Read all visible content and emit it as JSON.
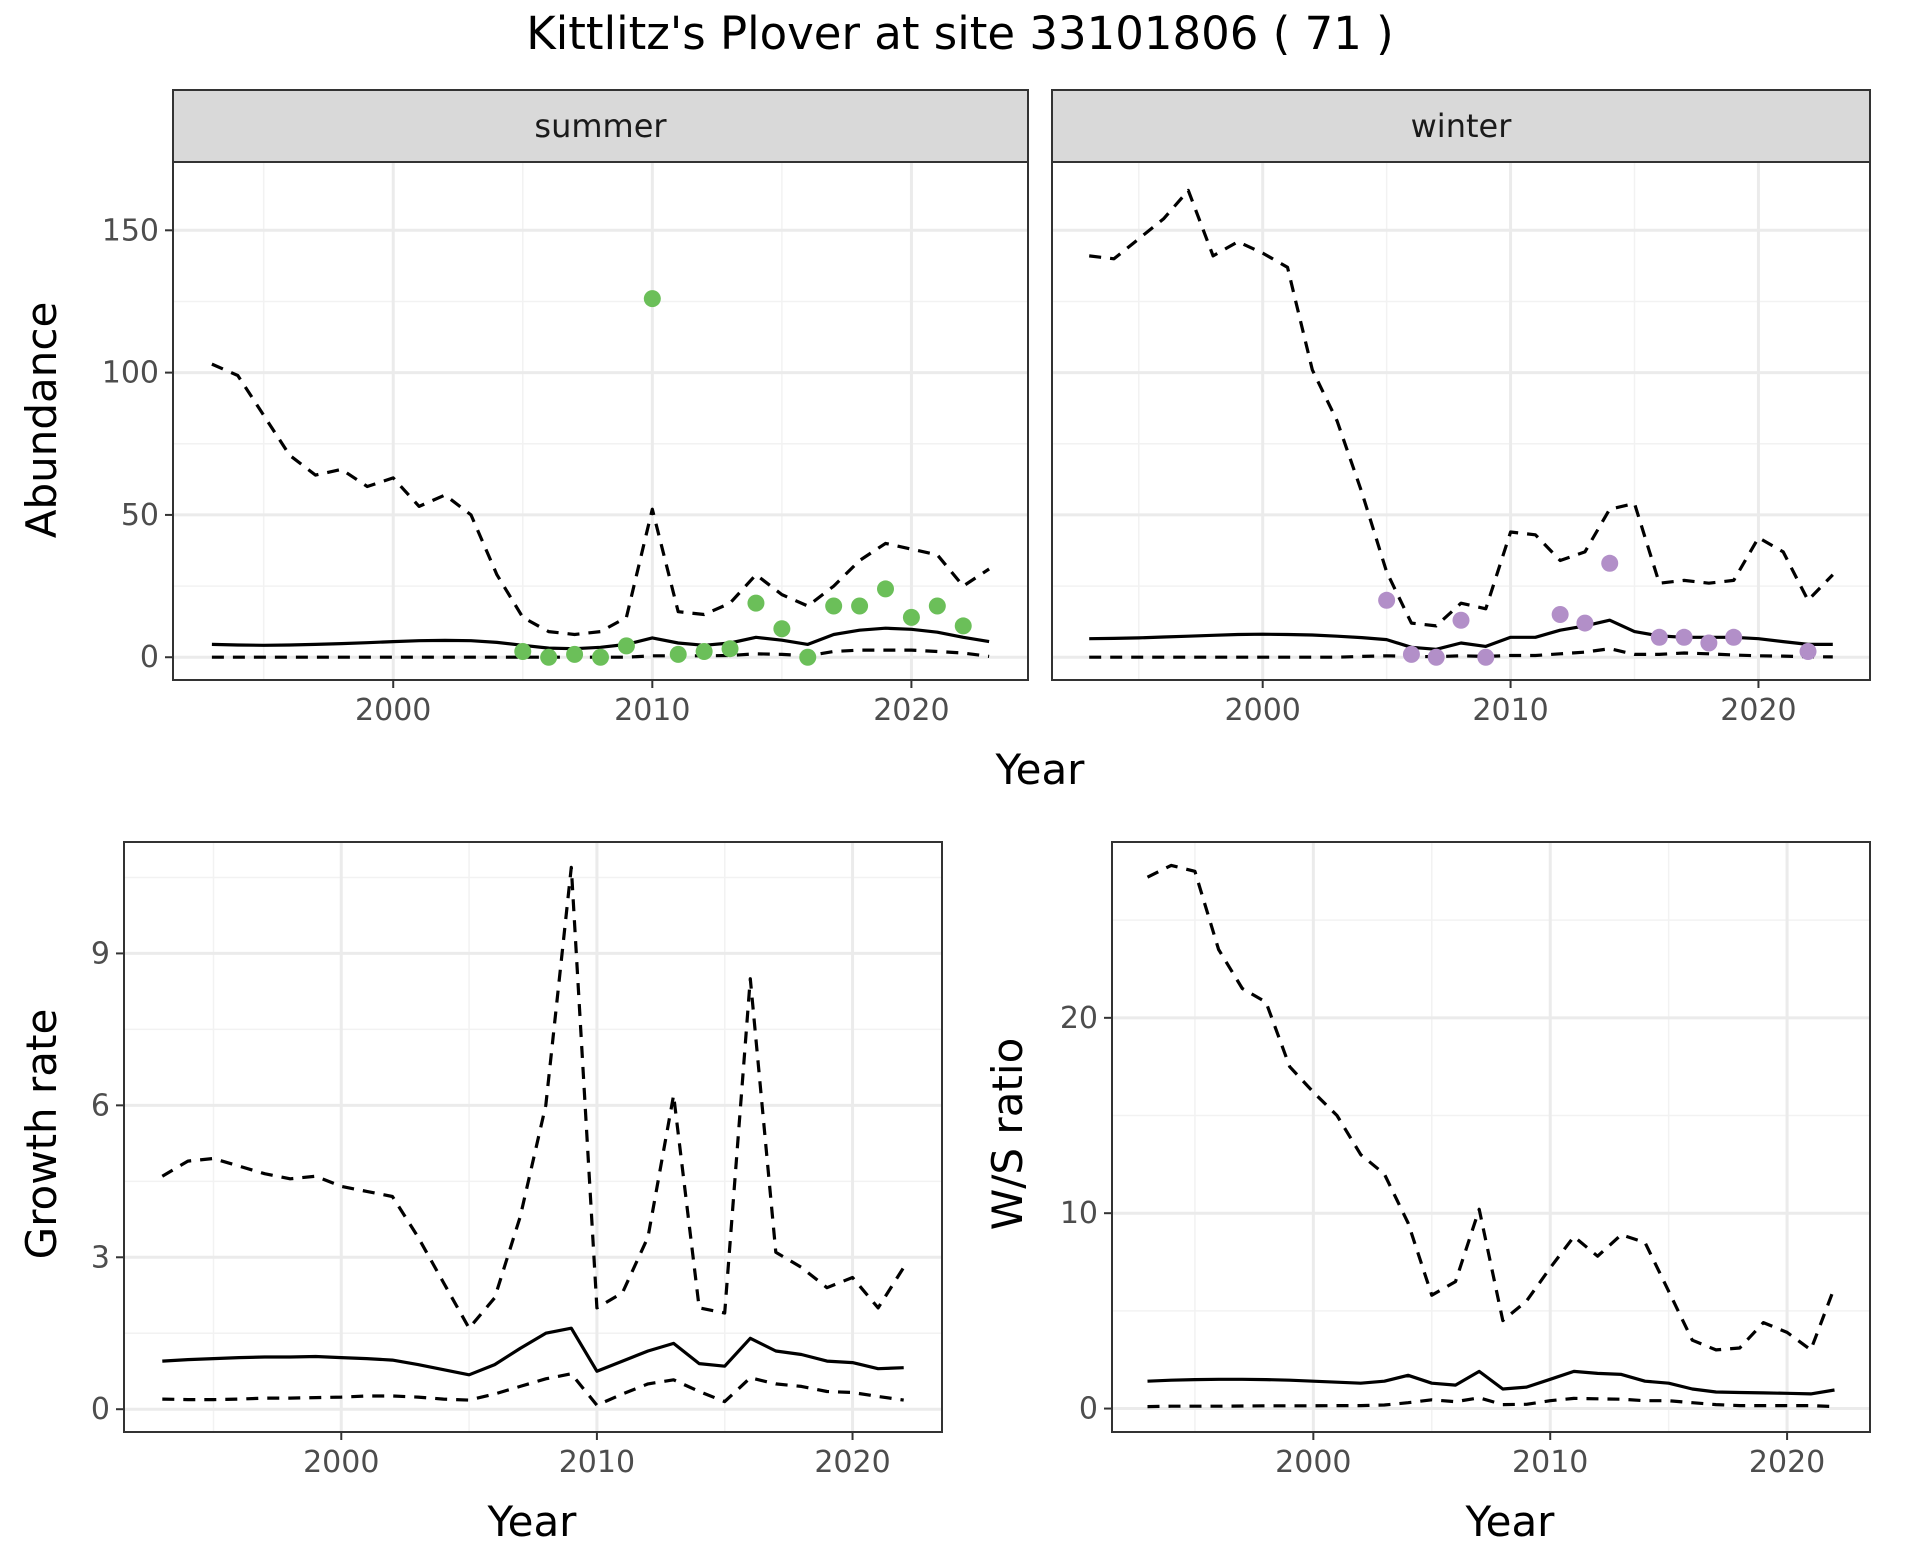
{
  "title": "Kittlitz's Plover at site 33101806 ( 71 )",
  "chart_data": [
    {
      "id": "abundance",
      "type": "line",
      "facets": [
        "summer",
        "winter"
      ],
      "xlabel": "Year",
      "ylabel": "Abundance",
      "xlim": [
        1991.5,
        2024.5
      ],
      "ylim": [
        -8,
        174
      ],
      "xticks": [
        2000,
        2010,
        2020
      ],
      "yticks": [
        0,
        50,
        100,
        150
      ],
      "grid": true,
      "panels": [
        {
          "strip": "summer",
          "point_color": "#6bbf59",
          "x": [
            1993,
            1994,
            1995,
            1996,
            1997,
            1998,
            1999,
            2000,
            2001,
            2002,
            2003,
            2004,
            2005,
            2006,
            2007,
            2008,
            2009,
            2010,
            2011,
            2012,
            2013,
            2014,
            2015,
            2016,
            2017,
            2018,
            2019,
            2020,
            2021,
            2022,
            2023
          ],
          "mean": [
            4.5,
            4.3,
            4.2,
            4.3,
            4.5,
            4.8,
            5.1,
            5.5,
            5.8,
            5.9,
            5.8,
            5.2,
            4.2,
            3.2,
            3.0,
            3.5,
            4.5,
            6.8,
            5.0,
            4.2,
            5.0,
            7.0,
            6.0,
            4.5,
            8.0,
            9.5,
            10.2,
            9.8,
            8.8,
            7.0,
            5.5
          ],
          "upper": [
            103,
            99,
            85,
            71,
            64,
            66,
            60,
            63,
            53,
            57,
            50,
            29,
            14,
            9,
            8,
            9,
            14,
            52,
            16,
            15,
            19,
            29,
            22,
            18,
            25,
            34,
            40,
            38,
            36,
            25,
            31
          ],
          "lower": [
            0,
            0,
            0,
            0,
            0,
            0,
            0,
            0,
            0,
            0,
            0,
            0,
            0,
            0,
            0,
            0,
            0,
            0.5,
            0.5,
            0.5,
            0.6,
            1.2,
            1.0,
            0.5,
            2.0,
            2.5,
            2.5,
            2.5,
            2.0,
            1.5,
            0.3
          ],
          "points": [
            {
              "x": 2005,
              "y": 2
            },
            {
              "x": 2006,
              "y": 0
            },
            {
              "x": 2007,
              "y": 1
            },
            {
              "x": 2008,
              "y": 0
            },
            {
              "x": 2009,
              "y": 4
            },
            {
              "x": 2010,
              "y": 126
            },
            {
              "x": 2011,
              "y": 1
            },
            {
              "x": 2012,
              "y": 2
            },
            {
              "x": 2013,
              "y": 3
            },
            {
              "x": 2014,
              "y": 19
            },
            {
              "x": 2015,
              "y": 10
            },
            {
              "x": 2016,
              "y": 0
            },
            {
              "x": 2017,
              "y": 18
            },
            {
              "x": 2018,
              "y": 18
            },
            {
              "x": 2019,
              "y": 24
            },
            {
              "x": 2020,
              "y": 14
            },
            {
              "x": 2021,
              "y": 18
            },
            {
              "x": 2022,
              "y": 11
            }
          ]
        },
        {
          "strip": "winter",
          "point_color": "#b28fc8",
          "x": [
            1993,
            1994,
            1995,
            1996,
            1997,
            1998,
            1999,
            2000,
            2001,
            2002,
            2003,
            2004,
            2005,
            2006,
            2007,
            2008,
            2009,
            2010,
            2011,
            2012,
            2013,
            2014,
            2015,
            2016,
            2017,
            2018,
            2019,
            2020,
            2021,
            2022,
            2023
          ],
          "mean": [
            6.5,
            6.6,
            6.8,
            7.1,
            7.4,
            7.7,
            8.0,
            8.1,
            8.0,
            7.8,
            7.4,
            6.9,
            6.2,
            3.5,
            2.8,
            5.0,
            3.8,
            7.0,
            7.0,
            9.5,
            11.0,
            13.0,
            9.0,
            7.5,
            7.0,
            7.0,
            7.0,
            6.5,
            5.5,
            4.5,
            4.5
          ],
          "upper": [
            141,
            140,
            147,
            154,
            164,
            141,
            146,
            142,
            137,
            101,
            83,
            58,
            30,
            12,
            11,
            19,
            17,
            44,
            43,
            34,
            37,
            52,
            54,
            26,
            27,
            26,
            27,
            42,
            37,
            20,
            29
          ],
          "lower": [
            0,
            0,
            0,
            0,
            0,
            0,
            0,
            0,
            0,
            0,
            0,
            0.3,
            0.5,
            0.3,
            0.2,
            0.5,
            0.3,
            0.6,
            0.6,
            1.2,
            1.8,
            3.0,
            1.0,
            1.0,
            1.5,
            1.2,
            0.8,
            0.5,
            0.4,
            0.2,
            0.1
          ],
          "points": [
            {
              "x": 2005,
              "y": 20
            },
            {
              "x": 2006,
              "y": 1
            },
            {
              "x": 2007,
              "y": 0
            },
            {
              "x": 2008,
              "y": 13
            },
            {
              "x": 2009,
              "y": 0
            },
            {
              "x": 2012,
              "y": 15
            },
            {
              "x": 2013,
              "y": 12
            },
            {
              "x": 2014,
              "y": 33
            },
            {
              "x": 2016,
              "y": 7
            },
            {
              "x": 2017,
              "y": 7
            },
            {
              "x": 2018,
              "y": 5
            },
            {
              "x": 2019,
              "y": 7
            },
            {
              "x": 2022,
              "y": 2
            }
          ]
        }
      ]
    },
    {
      "id": "growth",
      "type": "line",
      "xlabel": "Year",
      "ylabel": "Growth rate",
      "xlim": [
        1991.5,
        2023.5
      ],
      "ylim": [
        -0.45,
        11.2
      ],
      "xticks": [
        2000,
        2010,
        2020
      ],
      "yticks": [
        0,
        3,
        6,
        9
      ],
      "grid": true,
      "x": [
        1993,
        1994,
        1995,
        1996,
        1997,
        1998,
        1999,
        2000,
        2001,
        2002,
        2003,
        2004,
        2005,
        2006,
        2007,
        2008,
        2009,
        2010,
        2011,
        2012,
        2013,
        2014,
        2015,
        2016,
        2017,
        2018,
        2019,
        2020,
        2021,
        2022
      ],
      "mean": [
        0.95,
        0.98,
        1.0,
        1.02,
        1.03,
        1.03,
        1.04,
        1.02,
        1.0,
        0.97,
        0.88,
        0.78,
        0.68,
        0.88,
        1.2,
        1.5,
        1.6,
        0.75,
        0.95,
        1.15,
        1.3,
        0.9,
        0.85,
        1.4,
        1.15,
        1.08,
        0.95,
        0.92,
        0.8,
        0.82
      ],
      "upper": [
        4.6,
        4.9,
        4.95,
        4.8,
        4.65,
        4.55,
        4.6,
        4.4,
        4.3,
        4.2,
        3.4,
        2.5,
        1.6,
        2.2,
        3.8,
        6.0,
        10.7,
        2.0,
        2.3,
        3.4,
        6.2,
        2.0,
        1.9,
        8.5,
        3.1,
        2.8,
        2.4,
        2.6,
        2.0,
        2.8
      ],
      "lower": [
        0.2,
        0.19,
        0.19,
        0.2,
        0.22,
        0.22,
        0.23,
        0.24,
        0.26,
        0.26,
        0.24,
        0.2,
        0.18,
        0.3,
        0.45,
        0.6,
        0.7,
        0.08,
        0.3,
        0.5,
        0.58,
        0.35,
        0.15,
        0.62,
        0.5,
        0.45,
        0.35,
        0.33,
        0.25,
        0.18
      ]
    },
    {
      "id": "ws_ratio",
      "type": "line",
      "xlabel": "Year",
      "ylabel": "W/S ratio",
      "xlim": [
        1991.5,
        2023.5
      ],
      "ylim": [
        -1.2,
        29.0
      ],
      "xticks": [
        2000,
        2010,
        2020
      ],
      "yticks": [
        0,
        10,
        20
      ],
      "grid": true,
      "x": [
        1993,
        1994,
        1995,
        1996,
        1997,
        1998,
        1999,
        2000,
        2001,
        2002,
        2003,
        2004,
        2005,
        2006,
        2007,
        2008,
        2009,
        2010,
        2011,
        2012,
        2013,
        2014,
        2015,
        2016,
        2017,
        2018,
        2019,
        2020,
        2021,
        2022
      ],
      "mean": [
        1.4,
        1.45,
        1.48,
        1.5,
        1.5,
        1.48,
        1.45,
        1.4,
        1.35,
        1.3,
        1.4,
        1.7,
        1.3,
        1.2,
        1.9,
        1.0,
        1.1,
        1.5,
        1.9,
        1.8,
        1.75,
        1.4,
        1.3,
        1.0,
        0.85,
        0.82,
        0.8,
        0.78,
        0.75,
        0.95
      ],
      "upper": [
        27.2,
        27.8,
        27.5,
        23.5,
        21.5,
        20.8,
        17.5,
        16.2,
        15.0,
        13.0,
        12.0,
        9.5,
        5.8,
        6.5,
        10.2,
        4.5,
        5.5,
        7.2,
        8.8,
        7.8,
        8.9,
        8.5,
        6.0,
        3.5,
        3.0,
        3.1,
        4.4,
        3.9,
        3.0,
        6.2
      ],
      "lower": [
        0.1,
        0.12,
        0.12,
        0.12,
        0.13,
        0.14,
        0.14,
        0.14,
        0.15,
        0.15,
        0.18,
        0.3,
        0.45,
        0.35,
        0.55,
        0.2,
        0.22,
        0.4,
        0.52,
        0.5,
        0.48,
        0.4,
        0.4,
        0.3,
        0.2,
        0.15,
        0.15,
        0.15,
        0.15,
        0.1
      ]
    }
  ]
}
